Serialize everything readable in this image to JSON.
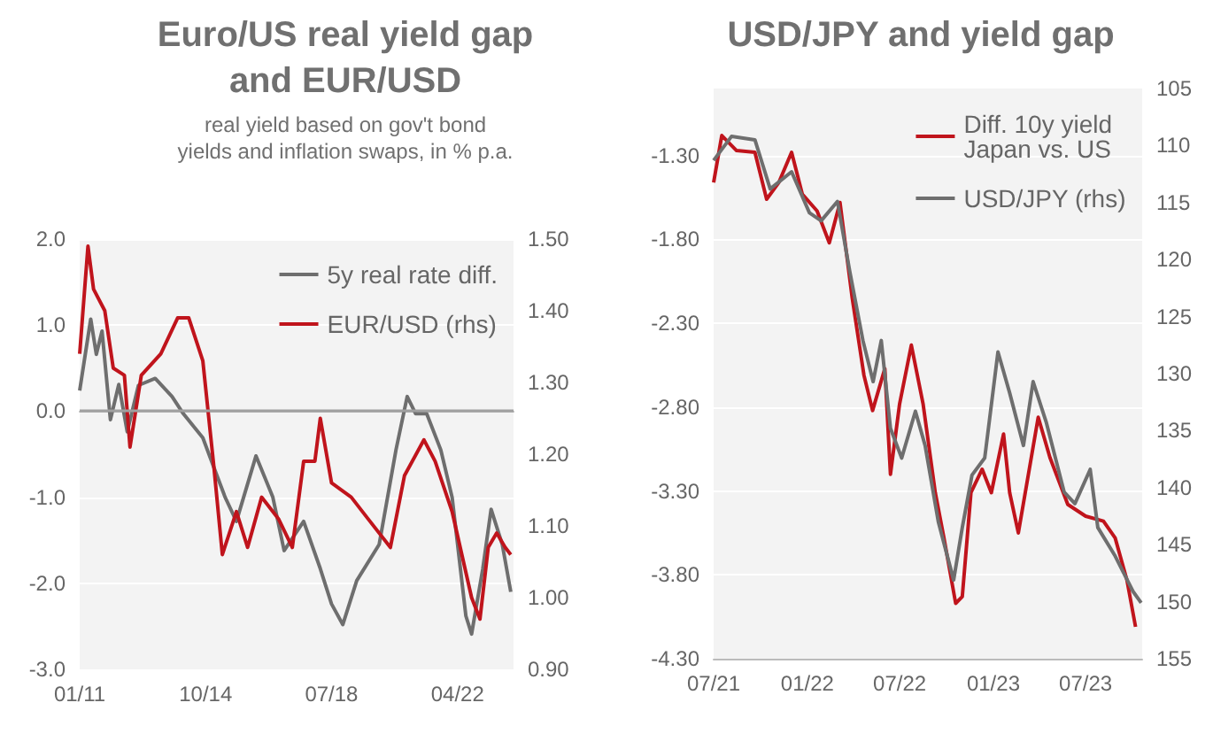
{
  "chart_data": [
    {
      "type": "line",
      "title": "Euro/US real yield gap\nand EUR/USD",
      "subtitle": "real yield based on gov't bond\nyields and inflation swaps, in % p.a.",
      "xlim": [
        "2011-01",
        "2023-12"
      ],
      "xticks": [
        {
          "value": "2011-01",
          "label": "01/11"
        },
        {
          "value": "2014-10",
          "label": "10/14"
        },
        {
          "value": "2018-07",
          "label": "07/18"
        },
        {
          "value": "2022-04",
          "label": "04/22"
        }
      ],
      "ylim": [
        -3,
        2
      ],
      "yticks": [
        {
          "value": -3,
          "label": "-3.0"
        },
        {
          "value": -2,
          "label": "-2.0"
        },
        {
          "value": -1,
          "label": "-1.0"
        },
        {
          "value": 0,
          "label": "0.0"
        },
        {
          "value": 1,
          "label": "1.0"
        },
        {
          "value": 2,
          "label": "2.0"
        }
      ],
      "y2lim": [
        0.9,
        1.5
      ],
      "y2ticks": [
        {
          "value": 0.9,
          "label": "0.90"
        },
        {
          "value": 1.0,
          "label": "1.00"
        },
        {
          "value": 1.1,
          "label": "1.10"
        },
        {
          "value": 1.2,
          "label": "1.20"
        },
        {
          "value": 1.3,
          "label": "1.30"
        },
        {
          "value": 1.4,
          "label": "1.40"
        },
        {
          "value": 1.5,
          "label": "1.50"
        }
      ],
      "grid": "y",
      "legend": "top right",
      "marker": "none",
      "line_style": "solid",
      "ref_lines": [
        {
          "axis": "y",
          "value": 0,
          "color": "#a0a0a0"
        }
      ],
      "series": [
        {
          "name": "5y real rate diff.",
          "color": "#6e6e6e",
          "axis": "y",
          "x": [
            "2011-01",
            "2011-05",
            "2011-07",
            "2011-09",
            "2011-12",
            "2012-03",
            "2012-06",
            "2012-10",
            "2013-04",
            "2013-10",
            "2014-02",
            "2014-09",
            "2015-01",
            "2015-05",
            "2015-09",
            "2016-04",
            "2016-10",
            "2017-02",
            "2017-09",
            "2018-03",
            "2018-07",
            "2018-11",
            "2019-04",
            "2019-12",
            "2020-06",
            "2020-10",
            "2021-01",
            "2021-05",
            "2021-10",
            "2022-02",
            "2022-07",
            "2022-09",
            "2023-01",
            "2023-04",
            "2023-08",
            "2023-11"
          ],
          "values": [
            0.24,
            1.07,
            0.66,
            0.93,
            -0.1,
            0.31,
            -0.24,
            0.3,
            0.38,
            0.17,
            -0.03,
            -0.31,
            -0.66,
            -1.0,
            -1.28,
            -0.52,
            -1.0,
            -1.62,
            -1.28,
            -1.83,
            -2.24,
            -2.48,
            -1.97,
            -1.55,
            -0.45,
            0.17,
            -0.03,
            -0.03,
            -0.45,
            -1.0,
            -2.38,
            -2.59,
            -1.83,
            -1.14,
            -1.55,
            -2.1
          ]
        },
        {
          "name": "EUR/USD (rhs)",
          "color": "#c0141c",
          "axis": "y2",
          "x": [
            "2011-01",
            "2011-04",
            "2011-06",
            "2011-10",
            "2012-01",
            "2012-05",
            "2012-07",
            "2012-11",
            "2013-06",
            "2013-12",
            "2014-04",
            "2014-09",
            "2015-01",
            "2015-04",
            "2015-09",
            "2016-01",
            "2016-06",
            "2016-12",
            "2017-05",
            "2017-09",
            "2018-01",
            "2018-03",
            "2018-07",
            "2019-02",
            "2019-08",
            "2020-04",
            "2020-09",
            "2021-04",
            "2021-08",
            "2022-02",
            "2022-09",
            "2022-12",
            "2023-03",
            "2023-06",
            "2023-09",
            "2023-11"
          ],
          "values": [
            1.34,
            1.49,
            1.43,
            1.4,
            1.32,
            1.31,
            1.21,
            1.31,
            1.34,
            1.39,
            1.39,
            1.33,
            1.18,
            1.06,
            1.12,
            1.07,
            1.14,
            1.11,
            1.07,
            1.19,
            1.19,
            1.25,
            1.16,
            1.14,
            1.11,
            1.07,
            1.17,
            1.22,
            1.19,
            1.12,
            1.0,
            0.97,
            1.07,
            1.09,
            1.07,
            1.06
          ]
        }
      ]
    },
    {
      "type": "line",
      "title": "USD/JPY and yield gap",
      "xlim": [
        "2021-07",
        "2023-10-20"
      ],
      "xticks": [
        {
          "value": "2021-07",
          "label": "07/21"
        },
        {
          "value": "2022-01",
          "label": "01/22"
        },
        {
          "value": "2022-07",
          "label": "07/22"
        },
        {
          "value": "2023-01",
          "label": "01/23"
        },
        {
          "value": "2023-07",
          "label": "07/23"
        }
      ],
      "ylim": [
        -4.3,
        -0.9
      ],
      "yticks": [
        {
          "value": -4.3,
          "label": "-4.30"
        },
        {
          "value": -3.8,
          "label": "-3.80"
        },
        {
          "value": -3.3,
          "label": "-3.30"
        },
        {
          "value": -2.8,
          "label": "-2.80"
        },
        {
          "value": -2.3,
          "label": "-2.30"
        },
        {
          "value": -1.8,
          "label": "-1.80"
        },
        {
          "value": -1.3,
          "label": "-1.30"
        }
      ],
      "y2lim": [
        155,
        105
      ],
      "y2ticks": [
        105,
        110,
        115,
        120,
        125,
        130,
        135,
        140,
        145,
        150,
        155
      ],
      "grid": "y",
      "legend": "top right",
      "marker": "none",
      "line_style": "solid",
      "series": [
        {
          "name": "Diff. 10y yield\nJapan vs. US",
          "color": "#c0141c",
          "axis": "y",
          "x": [
            "2021-07-01",
            "2021-07-17",
            "2021-08-15",
            "2021-09-20",
            "2021-10-13",
            "2021-11-06",
            "2021-12-01",
            "2021-12-22",
            "2022-01-20",
            "2022-02-13",
            "2022-03-06",
            "2022-03-30",
            "2022-04-22",
            "2022-05-09",
            "2022-06-02",
            "2022-06-13",
            "2022-07-01",
            "2022-07-24",
            "2022-08-16",
            "2022-09-09",
            "2022-09-26",
            "2022-10-19",
            "2022-11-01",
            "2022-11-18",
            "2022-12-10",
            "2022-12-28",
            "2023-01-21",
            "2023-02-02",
            "2023-02-19",
            "2023-03-30",
            "2023-04-22",
            "2023-05-27",
            "2023-07-01",
            "2023-08-05",
            "2023-08-28",
            "2023-09-20",
            "2023-10-07"
          ],
          "values": [
            -1.46,
            -1.18,
            -1.27,
            -1.28,
            -1.56,
            -1.46,
            -1.28,
            -1.53,
            -1.63,
            -1.82,
            -1.58,
            -2.15,
            -2.61,
            -2.82,
            -2.57,
            -3.2,
            -2.78,
            -2.43,
            -2.78,
            -3.31,
            -3.58,
            -3.97,
            -3.93,
            -3.31,
            -3.17,
            -3.31,
            -2.96,
            -3.31,
            -3.55,
            -2.86,
            -3.1,
            -3.38,
            -3.45,
            -3.48,
            -3.58,
            -3.83,
            -4.11
          ]
        },
        {
          "name": "USD/JPY (rhs)",
          "color": "#6e6e6e",
          "axis": "y2",
          "x": [
            "2021-07-01",
            "2021-08-05",
            "2021-09-20",
            "2021-10-20",
            "2021-12-01",
            "2022-01-05",
            "2022-01-28",
            "2022-03-01",
            "2022-03-25",
            "2022-04-20",
            "2022-05-10",
            "2022-05-26",
            "2022-06-13",
            "2022-07-05",
            "2022-08-01",
            "2022-08-20",
            "2022-09-15",
            "2022-10-15",
            "2022-11-01",
            "2022-11-20",
            "2022-12-15",
            "2023-01-10",
            "2023-02-02",
            "2023-03-01",
            "2023-03-20",
            "2023-04-15",
            "2023-05-20",
            "2023-06-10",
            "2023-07-10",
            "2023-07-25",
            "2023-08-28",
            "2023-10-02",
            "2023-10-18"
          ],
          "values": [
            111.3,
            109.2,
            109.5,
            113.8,
            112.3,
            115.9,
            116.6,
            114.9,
            121.0,
            127.1,
            130.7,
            127.1,
            134.8,
            137.4,
            133.3,
            136.3,
            143.0,
            148.1,
            143.5,
            138.9,
            137.4,
            128.1,
            131.7,
            136.3,
            130.7,
            134.3,
            140.4,
            141.4,
            138.4,
            143.5,
            146.0,
            149.1,
            150.1
          ]
        }
      ]
    }
  ]
}
